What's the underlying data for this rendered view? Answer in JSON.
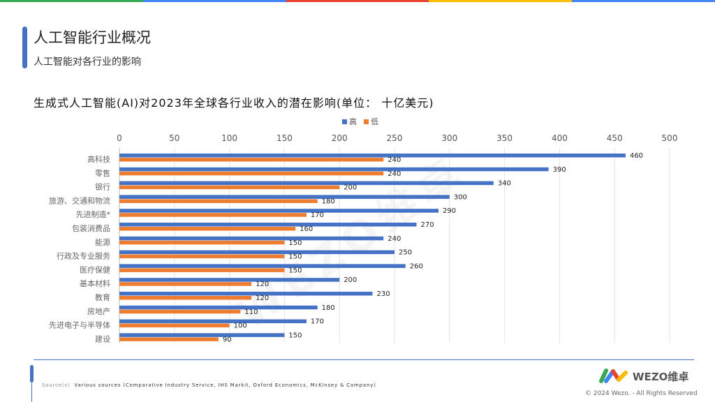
{
  "brand_colors": [
    "#34a853",
    "#4285f4",
    "#ea4335",
    "#fbbc05",
    "#4285f4"
  ],
  "header": {
    "title": "人工智能行业概况",
    "subtitle": "人工智能对各行业的影响"
  },
  "watermark": "WEZO维卓",
  "chart_data": {
    "type": "bar",
    "orientation": "horizontal",
    "title": "生成式人工智能(AI)对2023年全球各行业收入的潜在影响(单位： 十亿美元)",
    "categories": [
      "高科技",
      "零售",
      "银行",
      "旅游、交通和物流",
      "先进制造*",
      "包装消费品",
      "能源",
      "行政及专业服务",
      "医疗保健",
      "基本材料",
      "教育",
      "房地产",
      "先进电子与半导体",
      "建设"
    ],
    "series": [
      {
        "name": "高",
        "color": "#4472c4",
        "values": [
          460,
          390,
          340,
          300,
          290,
          270,
          240,
          250,
          260,
          200,
          230,
          180,
          170,
          150
        ]
      },
      {
        "name": "低",
        "color": "#ed7d31",
        "values": [
          240,
          240,
          200,
          180,
          170,
          160,
          150,
          150,
          150,
          120,
          120,
          110,
          100,
          90
        ]
      }
    ],
    "xlim": [
      0,
      500
    ],
    "xticks": [
      0,
      50,
      100,
      150,
      200,
      250,
      300,
      350,
      400,
      450,
      500
    ],
    "axis_position": "top",
    "grid": true,
    "legend": "top-center",
    "data_labels": true
  },
  "footer": {
    "source_label": "Source(s)",
    "source_text": "Various sources (Comparative Industry Service, IHS Markit, Oxford Economics, McKinsey & Company)",
    "logo_text": "WEZO维卓",
    "copyright": "© 2024 Wezo. - All Rights Reserved"
  }
}
